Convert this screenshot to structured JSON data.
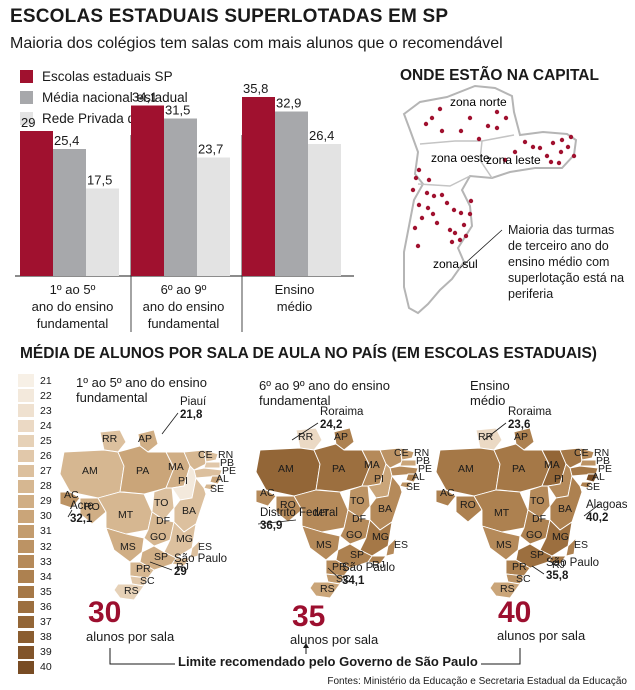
{
  "header": {
    "title": "ESCOLAS ESTADUAIS SUPERLOTADAS EM SP",
    "subtitle": "Maioria dos colégios tem salas com mais alunos que o recomendável"
  },
  "legend": [
    {
      "label": "Escolas estaduais SP",
      "color": "#a0112f"
    },
    {
      "label": "Média nacional estadual",
      "color": "#a7a8ab"
    },
    {
      "label": "Rede Privada de SP",
      "color": "#e3e3e3"
    }
  ],
  "chart_data": [
    {
      "type": "bar",
      "categories": [
        "1º ao 5º ano do ensino fundamental",
        "6º ao 9º ano do ensino fundamental",
        "Ensino médio"
      ],
      "category_lines": [
        [
          "1º ao 5º",
          "ano do ensino",
          "fundamental"
        ],
        [
          "6º ao 9º",
          "ano do ensino",
          "fundamental"
        ],
        [
          "Ensino",
          "médio"
        ]
      ],
      "series": [
        {
          "name": "Escolas estaduais SP",
          "values": [
            29,
            34.1,
            35.8
          ],
          "labels": [
            "29",
            "34,1",
            "35,8"
          ],
          "color": "#a0112f"
        },
        {
          "name": "Média nacional estadual",
          "values": [
            25.4,
            31.5,
            32.9
          ],
          "labels": [
            "25,4",
            "31,5",
            "32,9"
          ],
          "color": "#a7a8ab"
        },
        {
          "name": "Rede Privada de SP",
          "values": [
            17.5,
            23.7,
            26.4
          ],
          "labels": [
            "17,5",
            "23,7",
            "26,4"
          ],
          "color": "#e3e3e3"
        }
      ],
      "ylim": [
        0,
        40
      ],
      "grid": false,
      "legend_position": "top-left"
    }
  ],
  "capital_map": {
    "title": "ONDE ESTÃO NA CAPITAL",
    "zones": [
      "zona norte",
      "zona oeste",
      "zona leste",
      "zona sul"
    ],
    "note": "Maioria das turmas de terceiro ano do ensino médio com superlotação está na periferia",
    "dot_color": "#a0112f"
  },
  "national": {
    "title": "MÉDIA DE ALUNOS POR SALA DE AULA NO PAÍS (EM ESCOLAS ESTADUAIS)",
    "scale": [
      "21",
      "22",
      "23",
      "24",
      "25",
      "26",
      "27",
      "28",
      "29",
      "30",
      "31",
      "32",
      "33",
      "34",
      "35",
      "36",
      "37",
      "38",
      "39",
      "40"
    ],
    "scale_colors": [
      "#f7f0e6",
      "#f3e9dc",
      "#efe1d0",
      "#ebd9c4",
      "#e6d1b7",
      "#e1c8aa",
      "#dcc09e",
      "#d6b791",
      "#d0ae85",
      "#caa579",
      "#c39c6e",
      "#bc9364",
      "#b58a5a",
      "#ad8150",
      "#a57847",
      "#9c6f3f",
      "#936637",
      "#8a5d30",
      "#81542a",
      "#784c24"
    ],
    "maps": [
      {
        "title": [
          "1º ao 5º ano do ensino",
          "fundamental"
        ],
        "callouts": [
          {
            "name": "Piauí",
            "value": "21,8"
          },
          {
            "name": "Acre",
            "value": "32,1"
          },
          {
            "name": "São Paulo",
            "value": "29"
          }
        ],
        "recommended": "30",
        "unit": "alunos por sala"
      },
      {
        "title": [
          "6º ao 9º ano do ensino",
          "fundamental"
        ],
        "callouts": [
          {
            "name": "Roraima",
            "value": "24,2"
          },
          {
            "name": "Distrito Federal",
            "value": "36,9"
          },
          {
            "name": "São Paulo",
            "value": "34,1"
          }
        ],
        "recommended": "35",
        "unit": "alunos por sala"
      },
      {
        "title": [
          "Ensino",
          "médio"
        ],
        "callouts": [
          {
            "name": "Roraima",
            "value": "23,6"
          },
          {
            "name": "Alagoas",
            "value": "40,2"
          },
          {
            "name": "São Paulo",
            "value": "35,8"
          }
        ],
        "recommended": "40",
        "unit": "alunos por sala"
      }
    ],
    "states": [
      "RR",
      "AP",
      "AM",
      "PA",
      "MA",
      "CE",
      "RN",
      "PB",
      "PE",
      "AL",
      "SE",
      "PI",
      "AC",
      "RO",
      "TO",
      "BA",
      "MT",
      "DF",
      "GO",
      "MG",
      "ES",
      "MS",
      "RJ",
      "SP",
      "PR",
      "SC",
      "RS"
    ],
    "limit_label": "Limite recomendado pelo Governo de São Paulo"
  },
  "source": "Fontes: Ministério da Educação e Secretaria Estadual da Educação"
}
